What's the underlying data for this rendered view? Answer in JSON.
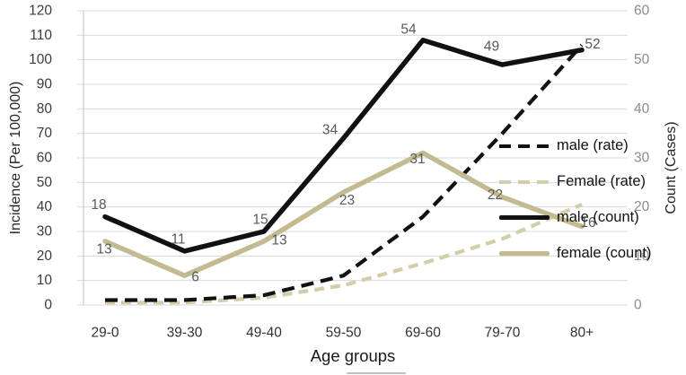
{
  "chart_data": {
    "type": "line",
    "title": "",
    "xlabel": "Age groups",
    "ylabel_left": "Incidence (Per 100,000)",
    "ylabel_right": "Count (Cases)",
    "categories": [
      "29-0",
      "39-30",
      "49-40",
      "59-50",
      "69-60",
      "79-70",
      "80+"
    ],
    "left_axis": {
      "min": 0,
      "max": 120,
      "step": 10
    },
    "right_axis": {
      "min": 0,
      "max": 60,
      "step": 10
    },
    "grid": true,
    "legend_position": "inside-right",
    "series": [
      {
        "name": "male (rate)",
        "axis": "left",
        "line": "dashed",
        "color": "#111111",
        "values": [
          2,
          2,
          4,
          12,
          36,
          70,
          106
        ],
        "labels_shown": false
      },
      {
        "name": "Female (rate)",
        "axis": "left",
        "line": "dashed",
        "color": "#d4cdab",
        "values": [
          1,
          1,
          3,
          8,
          17,
          27,
          41
        ],
        "labels_shown": false
      },
      {
        "name": "male (count)",
        "axis": "right",
        "line": "solid",
        "color": "#111111",
        "values": [
          18,
          11,
          15,
          34,
          54,
          49,
          52
        ],
        "labels_shown": true
      },
      {
        "name": "female (count)",
        "axis": "right",
        "line": "solid",
        "color": "#c4ba92",
        "values": [
          13,
          6,
          13,
          23,
          31,
          22,
          16
        ],
        "labels_shown": true
      }
    ]
  },
  "colors": {
    "grid": "#d9d9d9",
    "axis_line": "#b4c2cd",
    "left_tick": "#3b3b3b",
    "right_tick": "#8c8c8c",
    "x_tick": "#333333",
    "data_label": "#595959",
    "legend_text": "#111111"
  }
}
